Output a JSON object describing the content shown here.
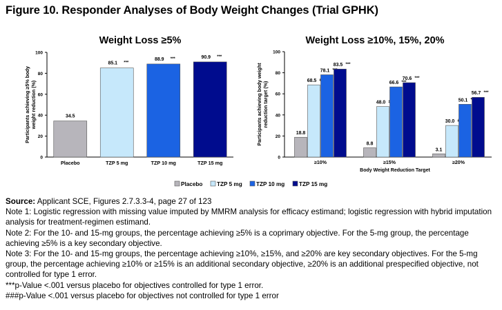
{
  "figure": {
    "title": "Figure 10. Responder Analyses of Body Weight Changes (Trial GPHK)"
  },
  "legend": {
    "items": [
      {
        "label": "Placebo",
        "color": "#b7b5bb"
      },
      {
        "label": "TZP 5 mg",
        "color": "#c6e8fb"
      },
      {
        "label": "TZP 10 mg",
        "color": "#1b63e3"
      },
      {
        "label": "TZP 15 mg",
        "color": "#000c8e"
      }
    ]
  },
  "chart_data": [
    {
      "type": "bar",
      "title": "Weight Loss ≥5%",
      "ylabel": "Participants achieving ≥5% body weight reduction (%)",
      "xlabel": "",
      "ylim": [
        0,
        100
      ],
      "yticks": [
        "0",
        "20",
        "40",
        "60",
        "80",
        "100"
      ],
      "grid": false,
      "categories": [
        "Placebo",
        "TZP 5 mg",
        "TZP 10 mg",
        "TZP 15 mg"
      ],
      "values": [
        34.5,
        85.1,
        88.9,
        90.9
      ],
      "value_labels": [
        "34.5",
        "85.1",
        "88.9",
        "90.9"
      ],
      "significance": [
        "",
        "***",
        "***",
        "***"
      ],
      "colors": [
        "#b7b5bb",
        "#c6e8fb",
        "#1b63e3",
        "#000c8e"
      ]
    },
    {
      "type": "bar",
      "title": "Weight Loss ≥10%, 15%, 20%",
      "ylabel": "Participants achieving body weight reduction target (%)",
      "xlabel": "Body Weight Reduction Target",
      "ylim": [
        0,
        100
      ],
      "yticks": [
        "0",
        "20",
        "40",
        "60",
        "80",
        "100"
      ],
      "grid": false,
      "categories": [
        "≥10%",
        "≥15%",
        "≥20%"
      ],
      "series": [
        {
          "name": "Placebo",
          "color": "#b7b5bb",
          "values": [
            18.8,
            8.8,
            3.1
          ],
          "labels": [
            "18.8",
            "8.8",
            "3.1"
          ],
          "marks": [
            "",
            "",
            ""
          ]
        },
        {
          "name": "TZP 5 mg",
          "color": "#c6e8fb",
          "values": [
            68.5,
            48.0,
            30.0
          ],
          "labels": [
            "68.5",
            "48.0",
            "30.0"
          ],
          "marks": [
            "###",
            "###",
            "###"
          ]
        },
        {
          "name": "TZP 10 mg",
          "color": "#1b63e3",
          "values": [
            78.1,
            66.6,
            50.1
          ],
          "labels": [
            "78.1",
            "66.6",
            "50.1"
          ],
          "marks": [
            "***",
            "***",
            "***"
          ]
        },
        {
          "name": "TZP 15 mg",
          "color": "#000c8e",
          "values": [
            83.5,
            70.6,
            56.7
          ],
          "labels": [
            "83.5",
            "70.6",
            "56.7"
          ],
          "marks": [
            "***",
            "***",
            "***"
          ]
        }
      ]
    }
  ],
  "notes": {
    "source_label": "Source:",
    "source_text": " Applicant SCE, Figures 2.7.3.3-4, page 27 of 123",
    "lines": [
      "Note 1: Logistic regression with missing value imputed by MMRM analysis for efficacy estimand; logistic regression with hybrid imputation analysis for treatment-regimen estimand.",
      "Note 2: For the 10- and 15-mg groups, the percentage achieving ≥5% is a coprimary objective. For the 5-mg group, the percentage achieving ≥5% is a key secondary objective.",
      "Note 3: For the 10- and 15-mg groups, the percentage achieving ≥10%, ≥15%, and ≥20% are key secondary objectives. For the 5-mg group, the percentage achieving ≥10% or ≥15% is an additional secondary objective, ≥20% is an additional prespecified objective, not controlled for type 1 error.",
      "***p-Value <.001 versus placebo for objectives controlled for type 1 error.",
      "###p-Value <.001 versus placebo for objectives not controlled for type 1 error"
    ]
  }
}
